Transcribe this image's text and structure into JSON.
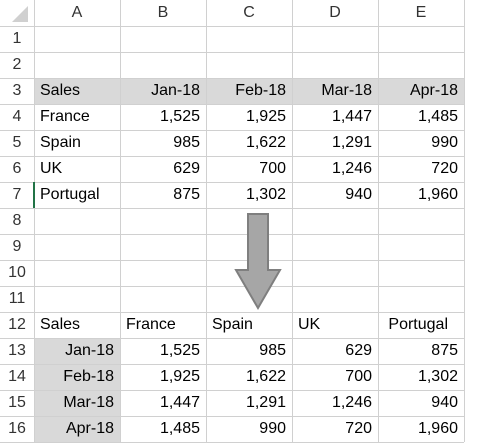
{
  "columns": [
    "A",
    "B",
    "C",
    "D",
    "E"
  ],
  "rows": [
    "1",
    "2",
    "3",
    "4",
    "5",
    "6",
    "7",
    "8",
    "9",
    "10",
    "11",
    "12",
    "13",
    "14",
    "15",
    "16"
  ],
  "table1": {
    "corner": "Sales",
    "headers": [
      "Jan-18",
      "Feb-18",
      "Mar-18",
      "Apr-18"
    ],
    "rows": [
      {
        "label": "France",
        "values": [
          "1,525",
          "1,925",
          "1,447",
          "1,485"
        ]
      },
      {
        "label": "Spain",
        "values": [
          "985",
          "1,622",
          "1,291",
          "990"
        ]
      },
      {
        "label": "UK",
        "values": [
          "629",
          "700",
          "1,246",
          "720"
        ]
      },
      {
        "label": "Portugal",
        "values": [
          "875",
          "1,302",
          "940",
          "1,960"
        ]
      }
    ]
  },
  "table2": {
    "corner": "Sales",
    "headers": [
      "France",
      "Spain",
      "UK",
      "Portugal"
    ],
    "rows": [
      {
        "label": "Jan-18",
        "values": [
          "1,525",
          "985",
          "629",
          "875"
        ]
      },
      {
        "label": "Feb-18",
        "values": [
          "1,925",
          "1,622",
          "700",
          "1,302"
        ]
      },
      {
        "label": "Mar-18",
        "values": [
          "1,447",
          "1,291",
          "1,246",
          "940"
        ]
      },
      {
        "label": "Apr-18",
        "values": [
          "1,485",
          "990",
          "720",
          "1,960"
        ]
      }
    ]
  },
  "colors": {
    "header_fill": "#d9d9d9",
    "gridline": "#d0d0d0",
    "arrow_fill": "#a6a6a6",
    "arrow_stroke": "#7f7f7f",
    "active_cell_marker": "#217346"
  },
  "icons": {
    "corner": "select-all-triangle-icon",
    "arrow": "down-arrow-icon"
  }
}
